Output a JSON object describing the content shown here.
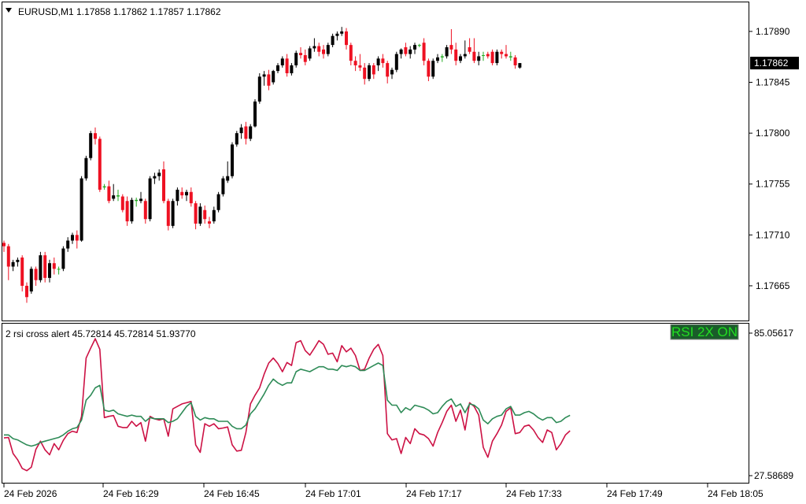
{
  "window": {
    "symbol_header": "EURUSD,M1  1.17858 1.17862 1.17857 1.17862"
  },
  "indicator": {
    "header": "2 rsi cross alert 45.72814 45.72814 51.93770",
    "badge_text": "RSI 2X ON",
    "badge_text_color": "#22dd22",
    "badge_bg": "#1a5c2a"
  },
  "colors": {
    "bull_candle": "#000000",
    "bear_candle": "#ee1122",
    "doji_candle": "#22aa22",
    "rsi_fast": "#cc1144",
    "rsi_slow": "#2e8b57",
    "current_price_bg": "#000000",
    "current_price_text": "#ffffff"
  },
  "chart_data": [
    {
      "type": "candlestick",
      "name": "EURUSD,M1",
      "y_ticks": [
        "1.17890",
        "1.17845",
        "1.17800",
        "1.17755",
        "1.17710",
        "1.17665"
      ],
      "ylim": [
        1.17635,
        1.17915
      ],
      "current_price": "1.17862",
      "x_tick_labels": [
        "24 Feb 2026",
        "24 Feb 16:29",
        "24 Feb 16:45",
        "24 Feb 17:01",
        "24 Feb 17:17",
        "24 Feb 17:33",
        "24 Feb 17:49",
        "24 Feb 18:05"
      ],
      "candles_ohlc": [
        [
          1.17703,
          1.17705,
          1.17695,
          1.177
        ],
        [
          1.177,
          1.17702,
          1.1767,
          1.17682
        ],
        [
          1.17682,
          1.17688,
          1.17678,
          1.17686
        ],
        [
          1.17686,
          1.1769,
          1.17682,
          1.17688
        ],
        [
          1.1769,
          1.17692,
          1.1766,
          1.17665
        ],
        [
          1.17665,
          1.17668,
          1.1765,
          1.17655
        ],
        [
          1.1766,
          1.17682,
          1.17658,
          1.1768
        ],
        [
          1.1768,
          1.17682,
          1.17665,
          1.1767
        ],
        [
          1.1767,
          1.17695,
          1.17668,
          1.17692
        ],
        [
          1.17692,
          1.17695,
          1.17668,
          1.17672
        ],
        [
          1.17672,
          1.17688,
          1.17668,
          1.17685
        ],
        [
          1.17685,
          1.1769,
          1.17675,
          1.1768
        ],
        [
          1.1768,
          1.17682,
          1.17675,
          1.1768
        ],
        [
          1.1768,
          1.177,
          1.17678,
          1.17698
        ],
        [
          1.17698,
          1.17708,
          1.17695,
          1.17705
        ],
        [
          1.17705,
          1.17712,
          1.17702,
          1.1771
        ],
        [
          1.1771,
          1.17714,
          1.17698,
          1.17705
        ],
        [
          1.17705,
          1.17762,
          1.17704,
          1.1776
        ],
        [
          1.1776,
          1.1778,
          1.17758,
          1.17778
        ],
        [
          1.17778,
          1.17802,
          1.17776,
          1.178
        ],
        [
          1.178,
          1.17805,
          1.1779,
          1.17795
        ],
        [
          1.17795,
          1.17797,
          1.17748,
          1.1775
        ],
        [
          1.17752,
          1.17755,
          1.1775,
          1.17753
        ],
        [
          1.17753,
          1.17758,
          1.17738,
          1.1774
        ],
        [
          1.17742,
          1.17755,
          1.1774,
          1.17745
        ],
        [
          1.17745,
          1.1775,
          1.1774,
          1.17744
        ],
        [
          1.17744,
          1.17746,
          1.1773,
          1.17732
        ],
        [
          1.1774,
          1.17744,
          1.17718,
          1.17722
        ],
        [
          1.17722,
          1.17743,
          1.1772,
          1.17741
        ],
        [
          1.17741,
          1.17743,
          1.17735,
          1.1774
        ],
        [
          1.1774,
          1.17748,
          1.17738,
          1.17742
        ],
        [
          1.1774,
          1.17742,
          1.1772,
          1.17724
        ],
        [
          1.17724,
          1.17762,
          1.17722,
          1.1776
        ],
        [
          1.1776,
          1.17765,
          1.17755,
          1.17762
        ],
        [
          1.17762,
          1.17768,
          1.17758,
          1.17765
        ],
        [
          1.17768,
          1.17775,
          1.17738,
          1.1774
        ],
        [
          1.1774,
          1.17742,
          1.17714,
          1.17718
        ],
        [
          1.17718,
          1.17742,
          1.17716,
          1.1774
        ],
        [
          1.1774,
          1.17752,
          1.17736,
          1.1775
        ],
        [
          1.17748,
          1.17752,
          1.17742,
          1.17745
        ],
        [
          1.17745,
          1.1775,
          1.1774,
          1.17748
        ],
        [
          1.17748,
          1.17752,
          1.17735,
          1.17738
        ],
        [
          1.17738,
          1.1774,
          1.17715,
          1.1772
        ],
        [
          1.1772,
          1.17738,
          1.17718,
          1.17735
        ],
        [
          1.17732,
          1.17736,
          1.1772,
          1.17724
        ],
        [
          1.17722,
          1.17726,
          1.17716,
          1.1772
        ],
        [
          1.17722,
          1.17735,
          1.1772,
          1.17732
        ],
        [
          1.17732,
          1.17748,
          1.1773,
          1.17746
        ],
        [
          1.17746,
          1.17762,
          1.17744,
          1.1776
        ],
        [
          1.17758,
          1.17775,
          1.17756,
          1.17762
        ],
        [
          1.17762,
          1.17792,
          1.1776,
          1.1779
        ],
        [
          1.1779,
          1.17802,
          1.17788,
          1.178
        ],
        [
          1.178,
          1.17808,
          1.17795,
          1.17805
        ],
        [
          1.17806,
          1.1781,
          1.1779,
          1.17795
        ],
        [
          1.17795,
          1.17808,
          1.17793,
          1.17806
        ],
        [
          1.17806,
          1.1783,
          1.17805,
          1.17828
        ],
        [
          1.17828,
          1.17853,
          1.17826,
          1.1785
        ],
        [
          1.1785,
          1.17855,
          1.17842,
          1.17852
        ],
        [
          1.17852,
          1.17856,
          1.17838,
          1.17842
        ],
        [
          1.17845,
          1.17856,
          1.17843,
          1.17855
        ],
        [
          1.17855,
          1.17862,
          1.17853,
          1.1786
        ],
        [
          1.1786,
          1.17868,
          1.17858,
          1.17866
        ],
        [
          1.17866,
          1.1787,
          1.1785,
          1.17853
        ],
        [
          1.17853,
          1.17862,
          1.17851,
          1.1786
        ],
        [
          1.1786,
          1.17873,
          1.17858,
          1.17871
        ],
        [
          1.17871,
          1.17876,
          1.17866,
          1.17869
        ],
        [
          1.17869,
          1.17874,
          1.1786,
          1.17863
        ],
        [
          1.17866,
          1.17877,
          1.17864,
          1.17875
        ],
        [
          1.17875,
          1.17884,
          1.17872,
          1.17877
        ],
        [
          1.17877,
          1.1788,
          1.17868,
          1.17872
        ],
        [
          1.17874,
          1.17878,
          1.17866,
          1.1787
        ],
        [
          1.1787,
          1.1788,
          1.17868,
          1.17878
        ],
        [
          1.17878,
          1.17888,
          1.17876,
          1.17886
        ],
        [
          1.17886,
          1.1789,
          1.17882,
          1.17888
        ],
        [
          1.17888,
          1.17894,
          1.17886,
          1.1789
        ],
        [
          1.1789,
          1.17893,
          1.17874,
          1.17878
        ],
        [
          1.17878,
          1.1788,
          1.1786,
          1.17864
        ],
        [
          1.17864,
          1.17868,
          1.17855,
          1.1786
        ],
        [
          1.1786,
          1.1787,
          1.17855,
          1.17858
        ],
        [
          1.17858,
          1.17862,
          1.17843,
          1.17848
        ],
        [
          1.17848,
          1.17862,
          1.17846,
          1.1786
        ],
        [
          1.1786,
          1.17862,
          1.17848,
          1.17852
        ],
        [
          1.1786,
          1.17868,
          1.17855,
          1.17866
        ],
        [
          1.17866,
          1.1787,
          1.17858,
          1.17862
        ],
        [
          1.17862,
          1.17864,
          1.17844,
          1.1785
        ],
        [
          1.17852,
          1.17858,
          1.17848,
          1.17856
        ],
        [
          1.17856,
          1.17872,
          1.17854,
          1.1787
        ],
        [
          1.1787,
          1.17875,
          1.17866,
          1.17874
        ],
        [
          1.17876,
          1.1788,
          1.17868,
          1.1787
        ],
        [
          1.1787,
          1.17877,
          1.17866,
          1.17874
        ],
        [
          1.17874,
          1.1788,
          1.1787,
          1.17878
        ],
        [
          1.17878,
          1.17879,
          1.17876,
          1.17878
        ],
        [
          1.1788,
          1.17884,
          1.1786,
          1.17864
        ],
        [
          1.17864,
          1.17866,
          1.17846,
          1.1785
        ],
        [
          1.1785,
          1.17866,
          1.17848,
          1.17864
        ],
        [
          1.17864,
          1.1787,
          1.17862,
          1.17867
        ],
        [
          1.17867,
          1.1787,
          1.17863,
          1.17868
        ],
        [
          1.17868,
          1.17878,
          1.17866,
          1.17876
        ],
        [
          1.17878,
          1.17892,
          1.1787,
          1.17874
        ],
        [
          1.17874,
          1.1788,
          1.1786,
          1.17864
        ],
        [
          1.17864,
          1.1787,
          1.17862,
          1.17868
        ],
        [
          1.17868,
          1.17882,
          1.17866,
          1.1787
        ],
        [
          1.17876,
          1.17884,
          1.1787,
          1.17872
        ],
        [
          1.17872,
          1.17884,
          1.17862,
          1.17864
        ],
        [
          1.17864,
          1.17872,
          1.1786,
          1.17868
        ],
        [
          1.17869,
          1.17872,
          1.17864,
          1.17869
        ],
        [
          1.1787,
          1.17872,
          1.17866,
          1.17868
        ],
        [
          1.17872,
          1.17874,
          1.1786,
          1.17862
        ],
        [
          1.17862,
          1.17874,
          1.1786,
          1.17872
        ],
        [
          1.17872,
          1.17874,
          1.17866,
          1.1787
        ],
        [
          1.1787,
          1.17878,
          1.17866,
          1.17868
        ],
        [
          1.17868,
          1.17872,
          1.17864,
          1.17867
        ],
        [
          1.17867,
          1.17869,
          1.17857,
          1.1786
        ],
        [
          1.17858,
          1.17862,
          1.17857,
          1.17862
        ]
      ]
    },
    {
      "type": "line",
      "name": "2 rsi cross alert",
      "y_ticks": [
        "85.05617",
        "27.58689"
      ],
      "ylim": [
        27.58689,
        85.05617
      ],
      "series": [
        {
          "name": "",
          "color_key": "rsi_fast",
          "values": [
            42.8,
            43.0,
            36.5,
            34.0,
            30.5,
            29.6,
            31.0,
            38.2,
            41.5,
            38.0,
            36.0,
            40.5,
            38.0,
            41.8,
            44.5,
            45.5,
            45.0,
            51.5,
            75.0,
            79.0,
            82.8,
            78.5,
            51.0,
            51.5,
            51.8,
            47.5,
            47.0,
            47.0,
            49.5,
            47.5,
            49.0,
            41.5,
            51.5,
            50.5,
            50.0,
            50.5,
            43.5,
            54.5,
            55.5,
            56.5,
            57.0,
            57.5,
            40.0,
            37.0,
            48.5,
            47.5,
            48.5,
            46.5,
            46.8,
            47.2,
            40.0,
            37.5,
            37.8,
            45.0,
            56.5,
            60.0,
            63.0,
            68.5,
            73.0,
            75.0,
            72.8,
            69.5,
            73.2,
            72.0,
            81.2,
            82.0,
            78.0,
            76.2,
            79.0,
            82.0,
            80.5,
            76.5,
            77.0,
            73.5,
            80.0,
            77.5,
            79.0,
            76.0,
            70.0,
            70.5,
            75.0,
            78.5,
            80.5,
            76.0,
            44.5,
            42.0,
            42.5,
            36.5,
            43.0,
            40.5,
            46.5,
            44.5,
            44.0,
            42.5,
            39.5,
            45.0,
            49.0,
            53.5,
            56.0,
            49.5,
            54.0,
            46.0,
            57.0,
            55.5,
            52.0,
            39.0,
            35.0,
            41.5,
            44.5,
            48.0,
            53.5,
            55.0,
            44.5,
            45.0,
            47.5,
            48.0,
            46.0,
            43.0,
            41.0,
            46.0,
            45.0,
            38.0,
            40.5,
            44.0,
            45.7
          ]
        },
        {
          "name": "",
          "color_key": "rsi_slow",
          "values": [
            44.0,
            44.0,
            42.5,
            42.0,
            41.0,
            40.0,
            39.5,
            40.0,
            41.0,
            41.5,
            42.0,
            42.5,
            43.0,
            44.0,
            45.5,
            46.5,
            47.0,
            50.0,
            58.0,
            60.0,
            63.0,
            64.0,
            54.0,
            53.5,
            54.0,
            52.5,
            52.0,
            51.5,
            52.0,
            51.5,
            51.5,
            49.5,
            51.0,
            50.5,
            50.5,
            50.5,
            49.0,
            49.5,
            50.5,
            53.0,
            55.5,
            57.0,
            51.5,
            50.0,
            51.0,
            50.5,
            50.5,
            49.5,
            49.5,
            49.5,
            47.5,
            46.5,
            46.5,
            48.0,
            52.5,
            54.5,
            57.5,
            60.5,
            64.0,
            66.5,
            65.0,
            64.0,
            65.0,
            65.0,
            69.5,
            70.5,
            70.0,
            69.5,
            70.5,
            71.5,
            71.5,
            70.5,
            70.5,
            70.0,
            72.0,
            71.5,
            72.0,
            71.5,
            70.0,
            70.0,
            71.0,
            72.0,
            73.0,
            72.0,
            58.0,
            56.0,
            56.0,
            53.0,
            55.0,
            54.0,
            56.0,
            55.5,
            55.0,
            54.0,
            52.5,
            53.0,
            55.5,
            57.5,
            58.5,
            55.5,
            56.5,
            53.0,
            56.5,
            56.0,
            54.5,
            50.0,
            48.5,
            50.5,
            51.5,
            52.0,
            54.5,
            55.5,
            52.0,
            52.0,
            53.0,
            53.5,
            52.5,
            51.0,
            50.0,
            51.0,
            51.0,
            49.0,
            49.5,
            51.0,
            51.9
          ]
        }
      ]
    }
  ]
}
